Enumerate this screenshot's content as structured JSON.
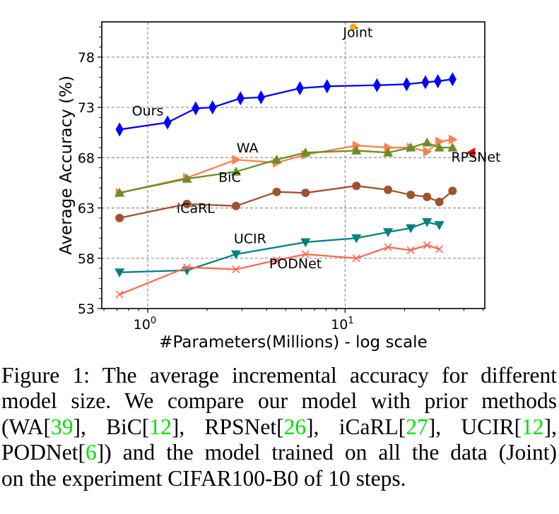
{
  "chart_data": {
    "type": "line",
    "title": "",
    "xlabel": "#Parameters(Millions) - log scale",
    "ylabel": "Average Accuracy (%)",
    "xscale": "log",
    "xlim": [
      0.585,
      51
    ],
    "ylim": [
      53,
      81.5
    ],
    "xticks": [
      {
        "value": 1,
        "label": "10^0",
        "base": "10",
        "exp": "0"
      },
      {
        "value": 10,
        "label": "10^1",
        "base": "10",
        "exp": "1"
      }
    ],
    "yticks": [
      53,
      58,
      63,
      68,
      73,
      78
    ],
    "grid": true,
    "grid_style": "dashed",
    "legend": "none (inline text annotations)",
    "series": [
      {
        "name": "Ours",
        "color": "#0000ff",
        "marker": "thin_diamond",
        "x": [
          0.72,
          1.26,
          1.75,
          2.13,
          2.95,
          3.75,
          5.9,
          8.1,
          14.5,
          20.5,
          25.5,
          29.5,
          35
        ],
        "y": [
          70.8,
          71.5,
          72.9,
          73.0,
          73.9,
          74.0,
          74.9,
          75.1,
          75.2,
          75.3,
          75.5,
          75.6,
          75.8
        ]
      },
      {
        "name": "WA",
        "color": "#ff8050",
        "marker": "triangle_right",
        "x": [
          0.72,
          1.58,
          2.8,
          4.5,
          6.3,
          11.4,
          16.5,
          21.5,
          26,
          30,
          35
        ],
        "y": [
          64.5,
          66.0,
          67.8,
          67.5,
          68.3,
          69.2,
          69.0,
          69.0,
          68.6,
          69.6,
          69.8
        ]
      },
      {
        "name": "BiC",
        "color": "#6b8e23",
        "marker": "triangle_up",
        "x": [
          0.72,
          1.58,
          2.8,
          4.5,
          6.3,
          11.4,
          16.5,
          21.5,
          26,
          30,
          35
        ],
        "y": [
          64.5,
          65.9,
          66.6,
          67.8,
          68.5,
          68.7,
          68.5,
          69.0,
          69.5,
          69.0,
          69.0
        ]
      },
      {
        "name": "iCaRL",
        "color": "#a0522d",
        "marker": "circle",
        "x": [
          0.72,
          1.58,
          2.8,
          4.5,
          6.3,
          11.4,
          16.5,
          21.5,
          26,
          30,
          35
        ],
        "y": [
          62.0,
          63.4,
          63.2,
          64.6,
          64.5,
          65.2,
          64.8,
          64.3,
          64.1,
          63.6,
          64.7
        ]
      },
      {
        "name": "UCIR",
        "color": "#008080",
        "marker": "triangle_down",
        "x": [
          0.72,
          1.58,
          2.8,
          6.3,
          11.4,
          16.5,
          21.5,
          26,
          30
        ],
        "y": [
          56.6,
          56.8,
          58.4,
          59.6,
          60.0,
          60.6,
          61.0,
          61.6,
          61.3
        ]
      },
      {
        "name": "PODNet",
        "color": "#fa6a50",
        "marker": "x",
        "x": [
          0.72,
          1.58,
          2.8,
          4.5,
          6.3,
          11.4,
          16.5,
          21.5,
          26,
          30
        ],
        "y": [
          54.4,
          57.1,
          56.9,
          57.8,
          58.4,
          58.0,
          59.1,
          58.8,
          59.3,
          58.9
        ]
      },
      {
        "name": "RPSNet",
        "color": "#ff0000",
        "marker": "triangle_left",
        "x": [
          43.5
        ],
        "y": [
          68.5
        ]
      },
      {
        "name": "Joint",
        "color": "#ffa500",
        "marker": "hexagon",
        "x": [
          11.0
        ],
        "y": [
          81.0
        ]
      }
    ],
    "annotations": [
      {
        "text": "Ours",
        "x": 1.0,
        "y": 72.2
      },
      {
        "text": "WA",
        "x": 3.2,
        "y": 68.5
      },
      {
        "text": "BiC",
        "x": 2.6,
        "y": 65.6
      },
      {
        "text": "iCaRL",
        "x": 1.75,
        "y": 62.5
      },
      {
        "text": "UCIR",
        "x": 3.3,
        "y": 59.5
      },
      {
        "text": "PODNet",
        "x": 5.6,
        "y": 57.0
      },
      {
        "text": "RPSNet",
        "x": 46,
        "y": 67.6
      },
      {
        "text": "Joint",
        "x": 11.6,
        "y": 80.0
      }
    ]
  },
  "caption": {
    "lines": [
      [
        {
          "t": "Figure 1:  The average incremental accuracy for different"
        }
      ],
      [
        {
          "t": "model size.  We compare our model with prior methods"
        }
      ],
      [
        {
          "t": "(WA["
        },
        {
          "t": "39",
          "cite": true
        },
        {
          "t": "],  BiC["
        },
        {
          "t": "12",
          "cite": true
        },
        {
          "t": "],  RPSNet["
        },
        {
          "t": "26",
          "cite": true
        },
        {
          "t": "],  iCaRL["
        },
        {
          "t": "27",
          "cite": true
        },
        {
          "t": "],  UCIR["
        },
        {
          "t": "12",
          "cite": true
        },
        {
          "t": "],"
        }
      ],
      [
        {
          "t": "PODNet["
        },
        {
          "t": "6",
          "cite": true
        },
        {
          "t": "]) and the model trained on all the data (Joint)"
        }
      ],
      [
        {
          "t": "on the experiment CIFAR100-B0 of 10 steps."
        }
      ]
    ],
    "cite_color": "#00e000"
  }
}
